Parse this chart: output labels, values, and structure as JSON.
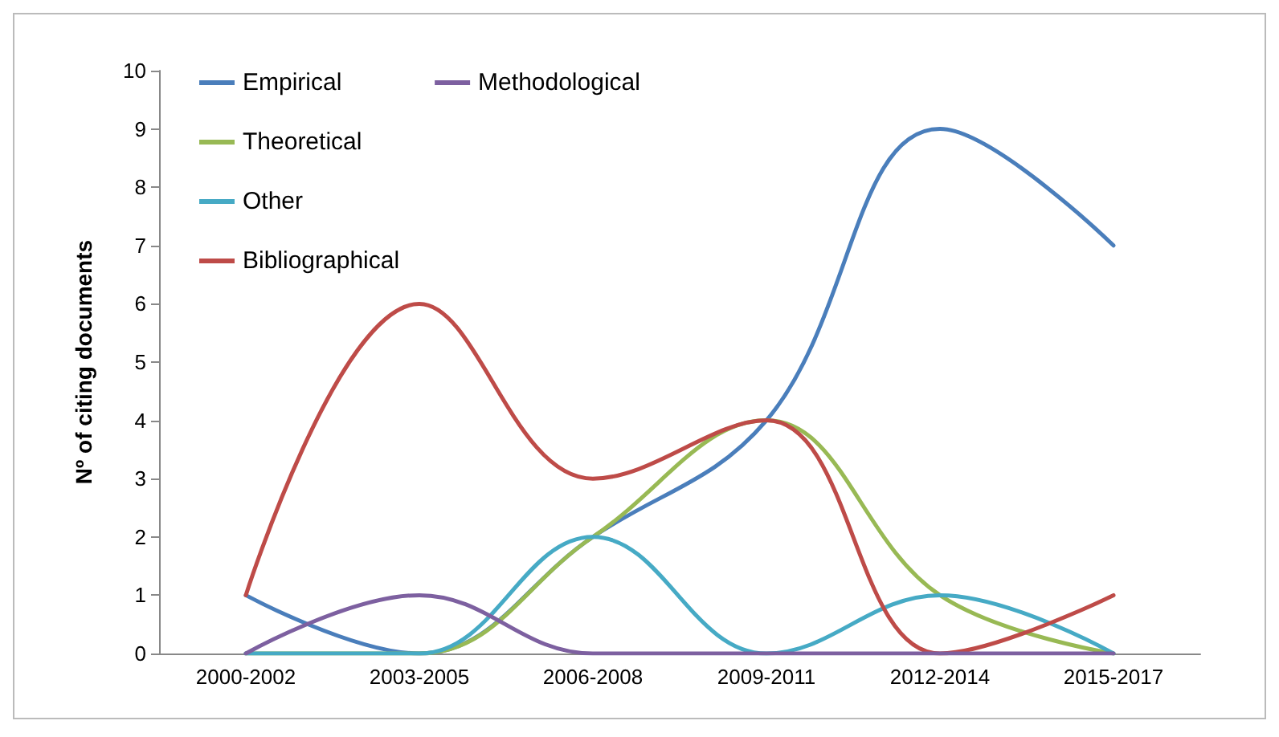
{
  "chart_data": {
    "type": "line",
    "ylabel": "Nº of citing documents",
    "categories": [
      "2000-2002",
      "2003-2005",
      "2006-2008",
      "2009-2011",
      "2012-2014",
      "2015-2017"
    ],
    "series": [
      {
        "name": "Empirical",
        "color": "#4a7ebb",
        "values": [
          1,
          0,
          2,
          4,
          9,
          7
        ]
      },
      {
        "name": "Theoretical",
        "color": "#98b954",
        "values": [
          0,
          0,
          2,
          4,
          1,
          0
        ]
      },
      {
        "name": "Other",
        "color": "#46aac5",
        "values": [
          0,
          0,
          2,
          0,
          1,
          0
        ]
      },
      {
        "name": "Bibliographical",
        "color": "#be4b48",
        "values": [
          1,
          6,
          3,
          4,
          0,
          1
        ]
      },
      {
        "name": "Methodological",
        "color": "#7d60a0",
        "values": [
          0,
          1,
          0,
          0,
          0,
          0
        ]
      }
    ],
    "ylim": [
      0,
      10
    ],
    "yticks": [
      0,
      1,
      2,
      3,
      4,
      5,
      6,
      7,
      8,
      9,
      10
    ],
    "grid": false,
    "legend": "top left",
    "marker": "none",
    "line_style": "solid"
  }
}
